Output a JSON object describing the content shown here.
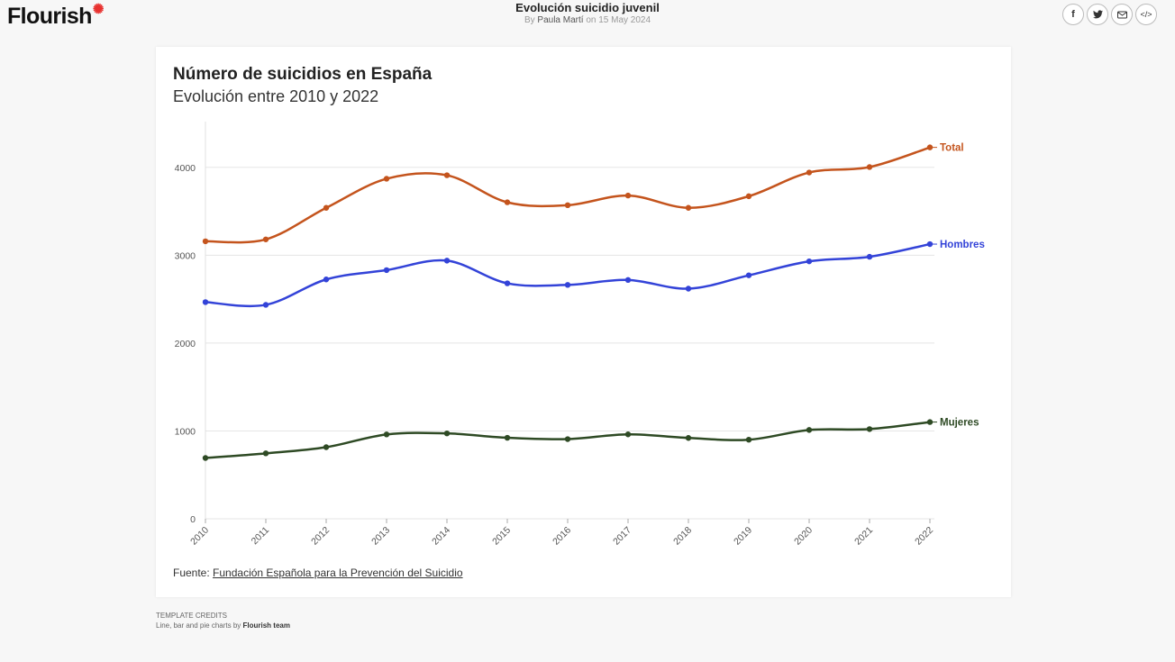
{
  "header": {
    "logo_text": "Flourish",
    "title": "Evolución suicidio juvenil",
    "byline_prefix": "By",
    "author": "Paula Martí",
    "date_text": "on 15 May 2024"
  },
  "share": {
    "facebook_icon": "f",
    "twitter_icon": "twitter-bird",
    "email_icon": "envelope",
    "embed_icon": "</>"
  },
  "colors": {
    "total": "#c4541d",
    "hombres": "#3343d8",
    "mujeres": "#2e4a24",
    "grid": "#e5e5e5"
  },
  "chart_data": {
    "type": "line",
    "title": "Número de suicidios en España",
    "subtitle": "Evolución entre 2010 y 2022",
    "x": [
      "2010",
      "2011",
      "2012",
      "2013",
      "2014",
      "2015",
      "2016",
      "2017",
      "2018",
      "2019",
      "2020",
      "2021",
      "2022"
    ],
    "y_ticks": [
      0,
      1000,
      2000,
      3000,
      4000
    ],
    "ylim": [
      0,
      4500
    ],
    "grid": true,
    "legend": "inline-right",
    "series": [
      {
        "name": "Total",
        "color": "#c4541d",
        "values": [
          3158,
          3180,
          3539,
          3870,
          3910,
          3602,
          3569,
          3679,
          3539,
          3671,
          3941,
          4003,
          4227
        ]
      },
      {
        "name": "Hombres",
        "color": "#3343d8",
        "values": [
          2466,
          2435,
          2724,
          2830,
          2938,
          2680,
          2662,
          2718,
          2619,
          2771,
          2930,
          2982,
          3126
        ]
      },
      {
        "name": "Mujeres",
        "color": "#2e4a24",
        "values": [
          692,
          745,
          815,
          960,
          972,
          922,
          907,
          961,
          920,
          900,
          1011,
          1021,
          1101
        ]
      }
    ]
  },
  "source": {
    "prefix": "Fuente:",
    "link_text": "Fundación Española para la Prevención del Suicidio"
  },
  "credits": {
    "heading": "TEMPLATE CREDITS",
    "text": "Line, bar and pie charts by",
    "team": "Flourish team"
  }
}
